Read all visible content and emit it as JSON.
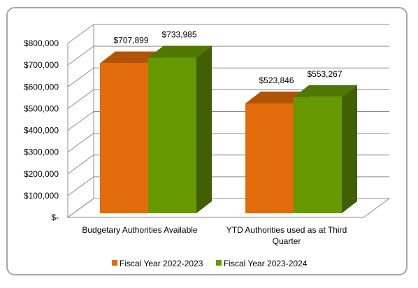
{
  "chart_data": {
    "type": "bar",
    "title": "",
    "xlabel": "",
    "ylabel": "",
    "categories": [
      [
        "Budgetary Authorities Available"
      ],
      [
        "YTD Authorities used as at Third",
        "Quarter"
      ]
    ],
    "series": [
      {
        "name": "Fiscal Year 2022-2023",
        "values": [
          707899,
          523846
        ],
        "labels": [
          "$707,899",
          "$523,846"
        ],
        "color": "#e36c0a"
      },
      {
        "name": "Fiscal Year 2023-2024",
        "values": [
          733985,
          553267
        ],
        "labels": [
          "$733,985",
          "$553,267"
        ],
        "color": "#669900"
      }
    ],
    "ylim": [
      0,
      800000
    ],
    "yticks": [
      {
        "value": 0,
        "label": "$-"
      },
      {
        "value": 100000,
        "label": "$100,000"
      },
      {
        "value": 200000,
        "label": "$200,000"
      },
      {
        "value": 300000,
        "label": "$300,000"
      },
      {
        "value": 400000,
        "label": "$400,000"
      },
      {
        "value": 500000,
        "label": "$500,000"
      },
      {
        "value": 600000,
        "label": "$600,000"
      },
      {
        "value": 700000,
        "label": "$700,000"
      },
      {
        "value": 800000,
        "label": "$800,000"
      }
    ],
    "grid": true,
    "legend_position": "bottom",
    "style": "3d-clustered-column"
  }
}
